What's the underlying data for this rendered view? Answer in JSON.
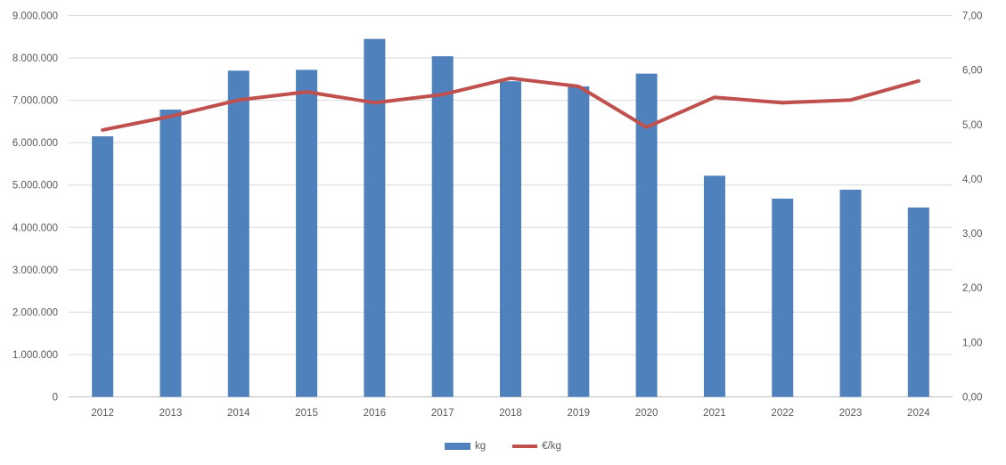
{
  "chart_data": {
    "type": "bar",
    "subtype": "combo-bar-line",
    "title": "",
    "categories": [
      "2012",
      "2013",
      "2014",
      "2015",
      "2016",
      "2017",
      "2018",
      "2019",
      "2020",
      "2021",
      "2022",
      "2023",
      "2024"
    ],
    "series": [
      {
        "name": "kg",
        "kind": "bar",
        "axis": "left",
        "color": "#4f81bd",
        "values": [
          6150000,
          6780000,
          7700000,
          7720000,
          8450000,
          8040000,
          7450000,
          7330000,
          7630000,
          5220000,
          4680000,
          4890000,
          4470000
        ]
      },
      {
        "name": "€/kg",
        "kind": "line",
        "axis": "right",
        "color": "#c0504d",
        "values": [
          4.9,
          5.15,
          5.45,
          5.6,
          5.4,
          5.55,
          5.85,
          5.7,
          4.95,
          5.5,
          5.4,
          5.45,
          5.8
        ]
      }
    ],
    "left_axis": {
      "min": 0,
      "max": 9000000,
      "step": 1000000,
      "tick_labels": [
        "0",
        "1.000.000",
        "2.000.000",
        "3.000.000",
        "4.000.000",
        "5.000.000",
        "6.000.000",
        "7.000.000",
        "8.000.000",
        "9.000.000"
      ]
    },
    "right_axis": {
      "min": 0,
      "max": 7,
      "step": 1,
      "tick_labels": [
        "0,00",
        "1,00",
        "2,00",
        "3,00",
        "4,00",
        "5,00",
        "6,00",
        "7,00"
      ]
    },
    "grid": true,
    "legend_position": "bottom"
  },
  "colors": {
    "bar": "#4f81bd",
    "line": "#c0504d",
    "gridline": "#d9d9d9",
    "axis_line": "#bfbfbf",
    "label_text": "#595959",
    "background": "#ffffff"
  }
}
